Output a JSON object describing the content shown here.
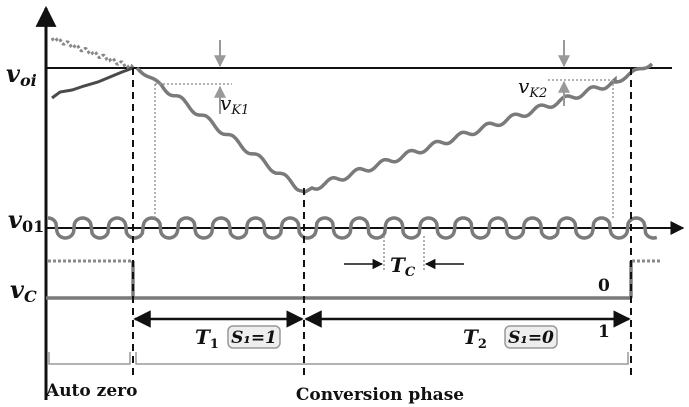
{
  "signals": {
    "voi_main": "v",
    "voi_sub": "oi",
    "v01_main": "v",
    "v01_sub": "01",
    "vc_main": "v",
    "vc_sub": "C"
  },
  "annotations": {
    "vk1_main": "v",
    "vk1_sub": "K1",
    "vk2_main": "v",
    "vk2_sub": "K2",
    "tc_main": "T",
    "tc_sub": "C",
    "vc_low": "0",
    "vc_high": "1"
  },
  "phases": {
    "t1_main": "T",
    "t1_sub": "1",
    "t2_main": "T",
    "t2_sub": "2",
    "s1_on": "S₁=1",
    "s1_off": "S₁=0",
    "auto_zero": "Auto zero",
    "conversion": "Conversion phase"
  },
  "colors": {
    "axis": "#111111",
    "waveform": "#7a7a7a",
    "dark_waveform": "#4a4a4a",
    "guide": "#999999",
    "box_fill": "#eeeeee"
  }
}
